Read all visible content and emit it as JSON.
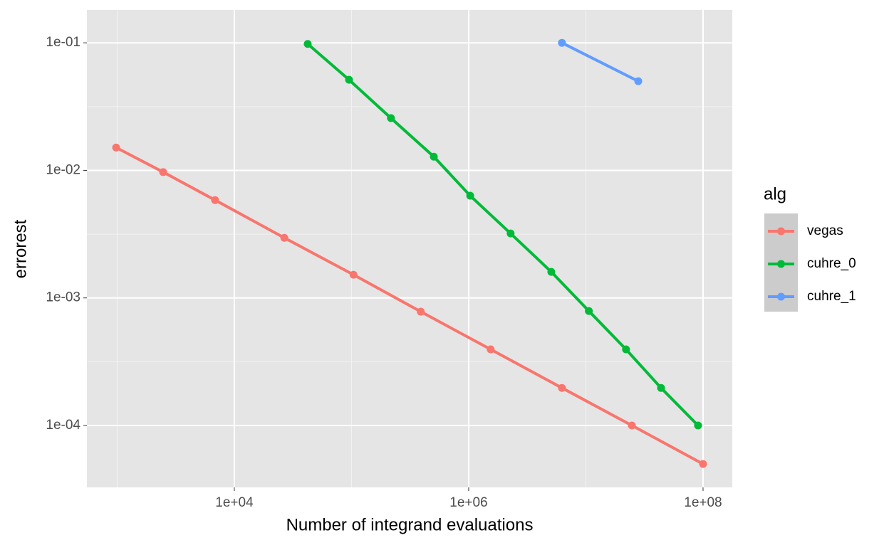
{
  "chart_data": {
    "type": "line",
    "x_label": "Number of integrand evaluations",
    "y_label": "errorest",
    "legend_title": "alg",
    "log_x": true,
    "log_y": true,
    "grid": true,
    "legend_position": "right",
    "xlim": [
      552,
      177600000
    ],
    "ylim": [
      3.27e-05,
      0.181
    ],
    "xticks": [
      {
        "value": 10000,
        "label": "1e+04"
      },
      {
        "value": 1000000,
        "label": "1e+06"
      },
      {
        "value": 100000000,
        "label": "1e+08"
      }
    ],
    "yticks": [
      {
        "value": 0.0001,
        "label": "1e-04"
      },
      {
        "value": 0.001,
        "label": "1e-03"
      },
      {
        "value": 0.01,
        "label": "1e-02"
      },
      {
        "value": 0.1,
        "label": "1e-01"
      }
    ],
    "series": [
      {
        "name": "vegas",
        "color": "#F8766D",
        "x": [
          980,
          2470,
          6850,
          26700,
          104000,
          390000,
          1540000,
          6250000,
          24700000,
          100000000
        ],
        "values": [
          0.0151,
          0.0097,
          0.00585,
          0.00296,
          0.00152,
          0.00078,
          0.000395,
          0.000197,
          0.0001,
          4.99e-05
        ]
      },
      {
        "name": "cuhre_0",
        "color": "#00BA38",
        "x": [
          42300,
          95300,
          217000,
          504000,
          1030000,
          2280000,
          5070000,
          10600000,
          22000000,
          43800000,
          90600000
        ],
        "values": [
          0.098,
          0.0513,
          0.0257,
          0.0128,
          0.00633,
          0.0032,
          0.0016,
          0.00079,
          0.000395,
          0.000197,
          0.0001
        ]
      },
      {
        "name": "cuhre_1",
        "color": "#619CFF",
        "x": [
          6250000,
          28000000
        ],
        "values": [
          0.1,
          0.05
        ]
      }
    ]
  }
}
